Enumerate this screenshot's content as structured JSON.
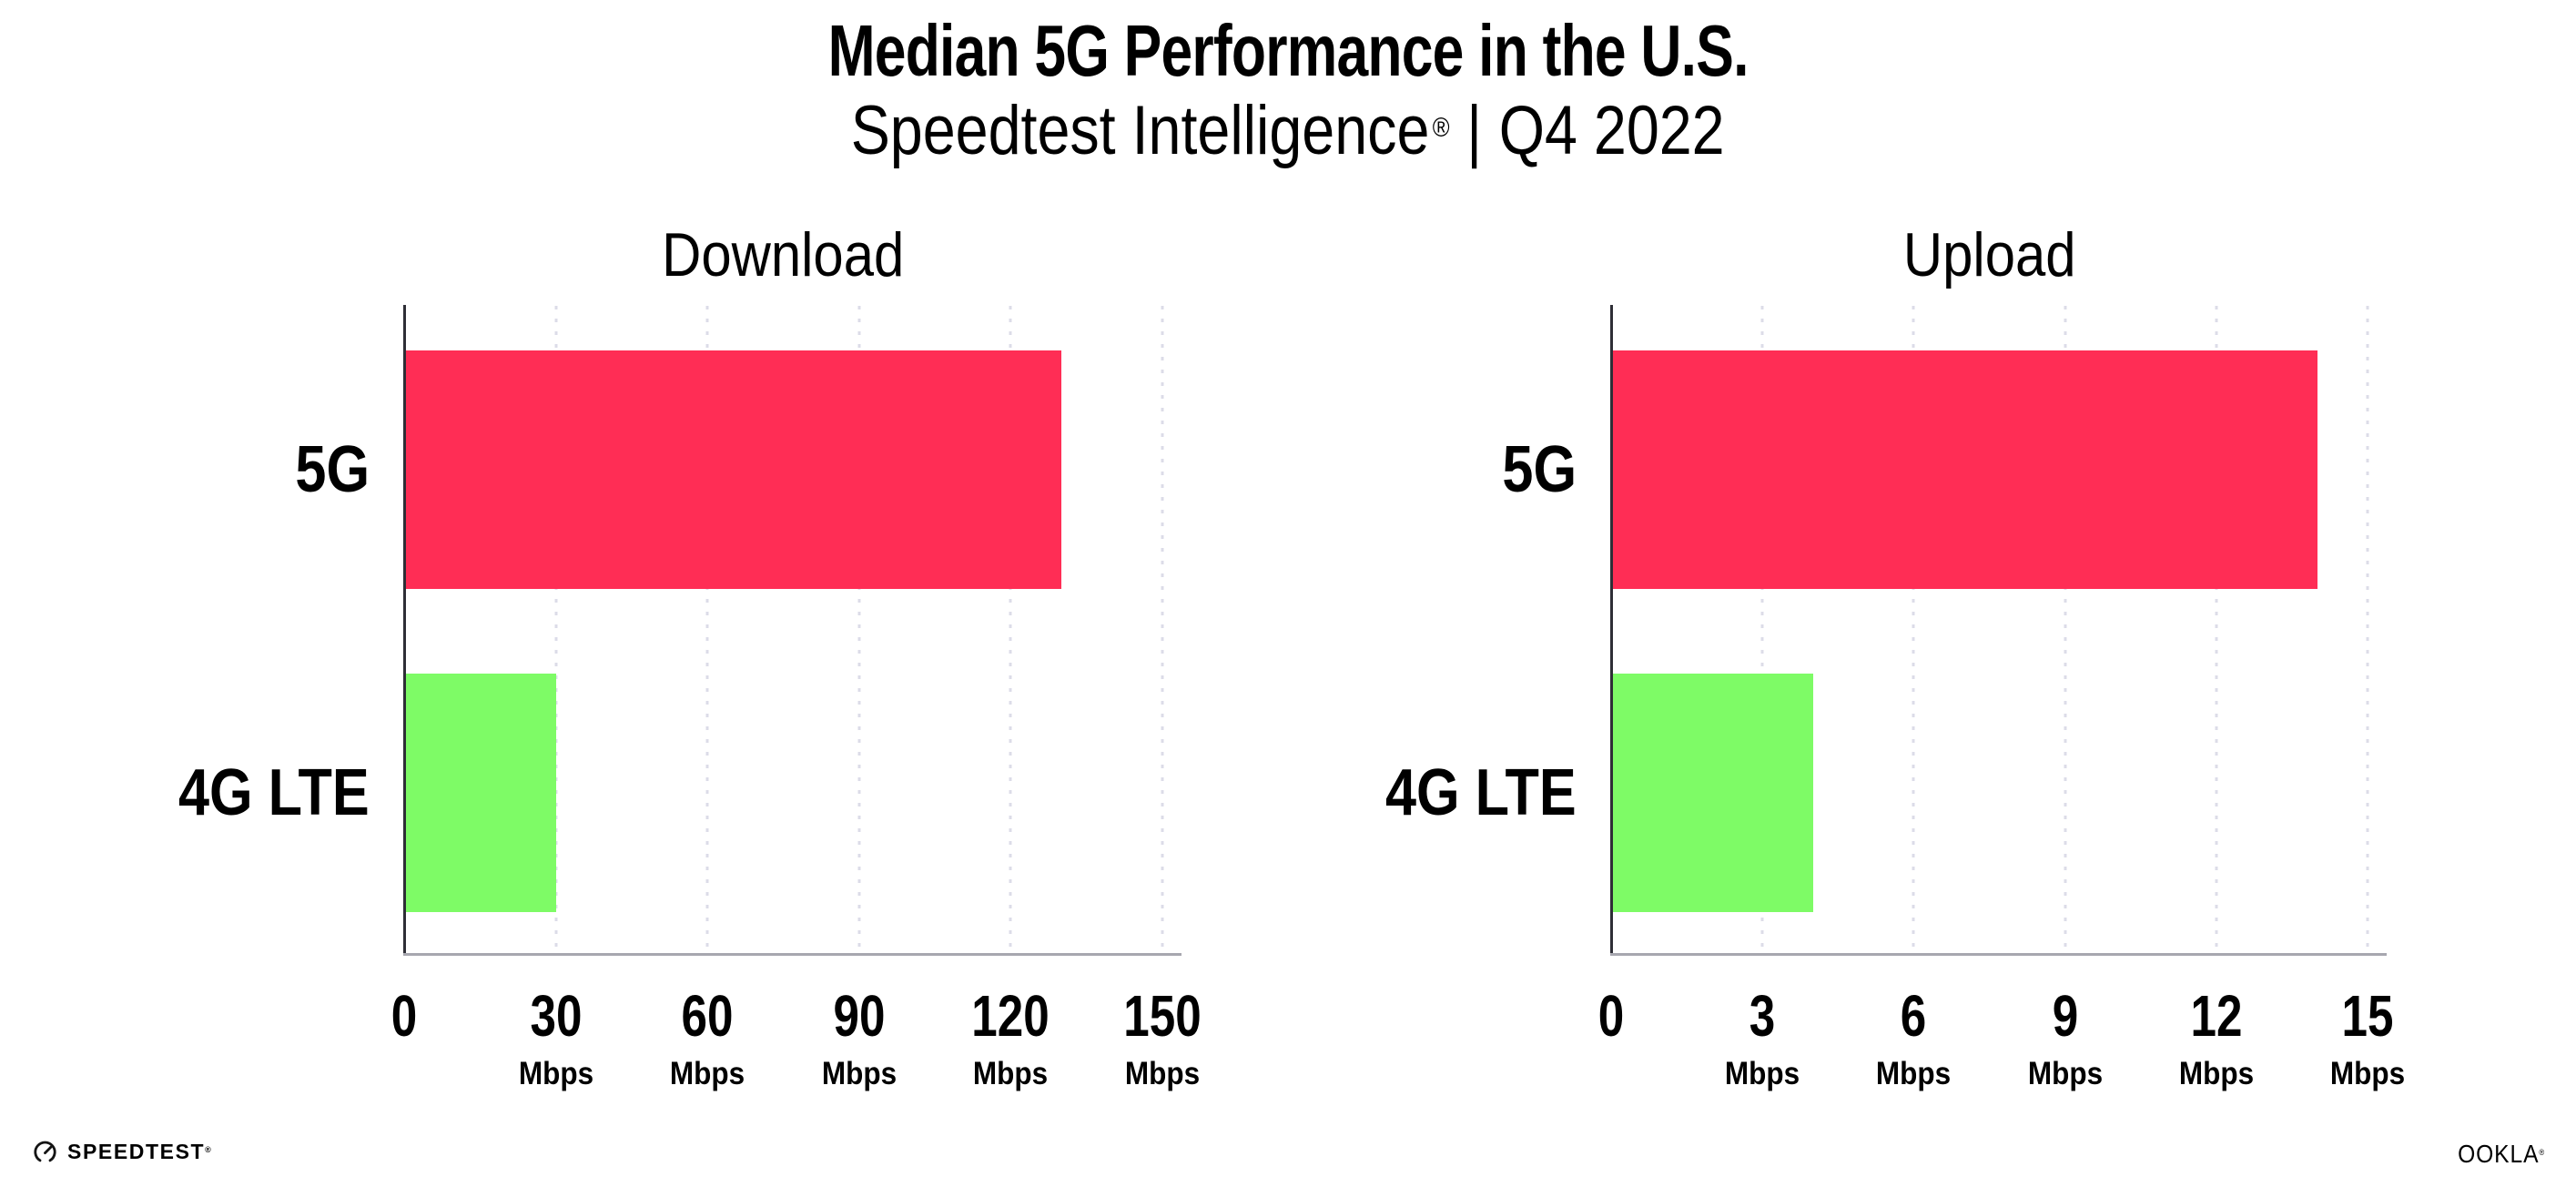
{
  "header": {
    "title": "Median 5G Performance in the U.S.",
    "subtitle_product": "Speedtest Intelligence",
    "subtitle_reg": "®",
    "subtitle_divider": "|",
    "subtitle_quarter": "Q4 2022"
  },
  "colors": {
    "bar_5g": "#FF2D55",
    "bar_4g_lte": "#7EFB66",
    "gridline": "#DCDCE8",
    "y_axis": "#2E2E36",
    "x_axis": "#A7A7AF",
    "text": "#000000",
    "background": "#FFFFFF"
  },
  "icons": {
    "speedtest_gauge": "speedometer-circle-with-needle"
  },
  "chart_data": [
    {
      "type": "bar",
      "orientation": "horizontal",
      "title": "Download",
      "categories": [
        "5G",
        "4G LTE"
      ],
      "values": [
        130,
        30
      ],
      "unit": "Mbps",
      "xlim": [
        0,
        150
      ],
      "xticks": [
        0,
        30,
        60,
        90,
        120,
        150
      ],
      "bar_colors": [
        "#FF2D55",
        "#7EFB66"
      ],
      "grid": "vertical-dotted",
      "legend": "none"
    },
    {
      "type": "bar",
      "orientation": "horizontal",
      "title": "Upload",
      "categories": [
        "5G",
        "4G LTE"
      ],
      "values": [
        14,
        4
      ],
      "unit": "Mbps",
      "xlim": [
        0,
        15
      ],
      "xticks": [
        0,
        3,
        6,
        9,
        12,
        15
      ],
      "bar_colors": [
        "#FF2D55",
        "#7EFB66"
      ],
      "grid": "vertical-dotted",
      "legend": "none"
    }
  ],
  "footer": {
    "speedtest": "SPEEDTEST",
    "speedtest_reg": "®",
    "ookla": "OOKLA",
    "ookla_reg": "®"
  }
}
